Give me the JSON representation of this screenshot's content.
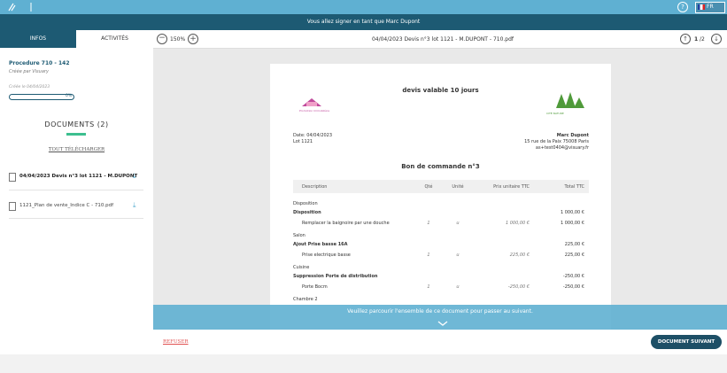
{
  "header": {
    "banner": "Vous allez signer en tant que Marc Dupont",
    "help": "?",
    "language": "FR"
  },
  "tabs": [
    "INFOS",
    "ACTIVITÉS"
  ],
  "toolbar": {
    "zoom": "150%",
    "filename": "04/04/2023 Devis n°3 lot 1121 - M.DUPONT - 710.pdf",
    "page": "1",
    "page_total": "/2"
  },
  "sidebar": {
    "procedure": "Procedure 710 - 142",
    "created_by": "Créée par Visuary",
    "created_on": "Créée le 04/04/2023",
    "progress": "0%",
    "documents_title": "DOCUMENTS (2)",
    "download_all": "TOUT TÉLÉCHARGER",
    "documents": [
      "04/04/2023 Devis n°3 lot 1121 - M.DUPONT",
      "1121_Plan de vente_Indice C - 710.pdf"
    ]
  },
  "document": {
    "validity": "devis valable 10 jours",
    "logo_left": "Promotion Immobilière",
    "logo_right": "CITÉ NATURE",
    "date": "Date: 04/04/2023",
    "lot": "Lot 1121",
    "client": {
      "name": "Marc Dupont",
      "address": "15 rue de la Paix 75008 Paris",
      "email": "as+test0404@visuary.fr"
    },
    "order_title": "Bon de commande n°3",
    "columns": [
      "Description",
      "Qté",
      "Unité",
      "Prix unitaire TTC",
      "Total TTC"
    ],
    "sections": [
      {
        "name": "Disposition",
        "items": [
          {
            "title": "Disposition",
            "total": "1 000,00 €",
            "lines": [
              [
                "Remplacer la baignoire par une douche",
                "1",
                "u",
                "1 000,00 €",
                "1 000,00 €"
              ]
            ]
          }
        ]
      },
      {
        "name": "Salon",
        "items": [
          {
            "title": "Ajout Prise basse 16A",
            "total": "225,00 €",
            "lines": [
              [
                "Prise electrique basse",
                "1",
                "u",
                "225,00 €",
                "225,00 €"
              ]
            ]
          }
        ]
      },
      {
        "name": "Cuisine",
        "items": [
          {
            "title": "Suppression Porte de distribution",
            "total": "-250,00 €",
            "lines": [
              [
                "Porte Bocm",
                "1",
                "u",
                "-250,00 €",
                "-250,00 €"
              ]
            ]
          }
        ]
      },
      {
        "name": "Chambre 2",
        "items": []
      }
    ]
  },
  "notice": "Veuillez parcourir l'ensemble de ce document pour passer au suivant.",
  "footer": {
    "refuse": "REFUSER",
    "next": "DOCUMENT SUIVANT"
  }
}
